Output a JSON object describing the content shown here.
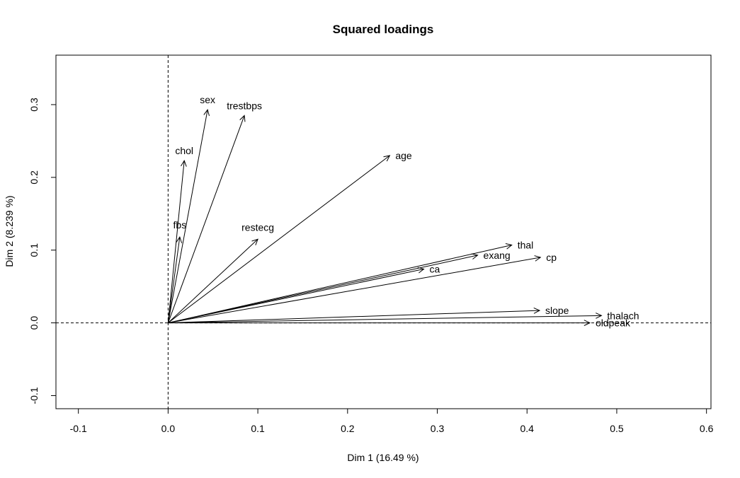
{
  "chart_data": {
    "type": "scatter",
    "title": "Squared loadings",
    "xlabel": "Dim 1 (16.49 %)",
    "ylabel": "Dim 2 (8.239 %)",
    "xlim": [
      -0.125,
      0.605
    ],
    "ylim": [
      -0.118,
      0.368
    ],
    "x_ticks": [
      -0.1,
      0.0,
      0.1,
      0.2,
      0.3,
      0.4,
      0.5,
      0.6
    ],
    "x_tick_labels": [
      "-0.1",
      "0.0",
      "0.1",
      "0.2",
      "0.3",
      "0.4",
      "0.5",
      "0.6"
    ],
    "y_ticks": [
      -0.1,
      0.0,
      0.1,
      0.2,
      0.3
    ],
    "y_tick_labels": [
      "-0.1",
      "0.0",
      "0.1",
      "0.2",
      "0.3"
    ],
    "reference_lines": {
      "x": 0,
      "y": 0,
      "style": "dashed"
    },
    "grid": false,
    "arrows": [
      {
        "label": "age",
        "x": 0.247,
        "y": 0.23
      },
      {
        "label": "sex",
        "x": 0.044,
        "y": 0.293
      },
      {
        "label": "cp",
        "x": 0.415,
        "y": 0.09
      },
      {
        "label": "trestbps",
        "x": 0.085,
        "y": 0.285
      },
      {
        "label": "chol",
        "x": 0.018,
        "y": 0.223
      },
      {
        "label": "fbs",
        "x": 0.013,
        "y": 0.118
      },
      {
        "label": "restecg",
        "x": 0.1,
        "y": 0.115
      },
      {
        "label": "thalach",
        "x": 0.483,
        "y": 0.01
      },
      {
        "label": "exang",
        "x": 0.345,
        "y": 0.093
      },
      {
        "label": "oldpeak",
        "x": 0.47,
        "y": 0.0
      },
      {
        "label": "slope",
        "x": 0.414,
        "y": 0.017
      },
      {
        "label": "ca",
        "x": 0.285,
        "y": 0.074
      },
      {
        "label": "thal",
        "x": 0.383,
        "y": 0.107
      }
    ]
  }
}
